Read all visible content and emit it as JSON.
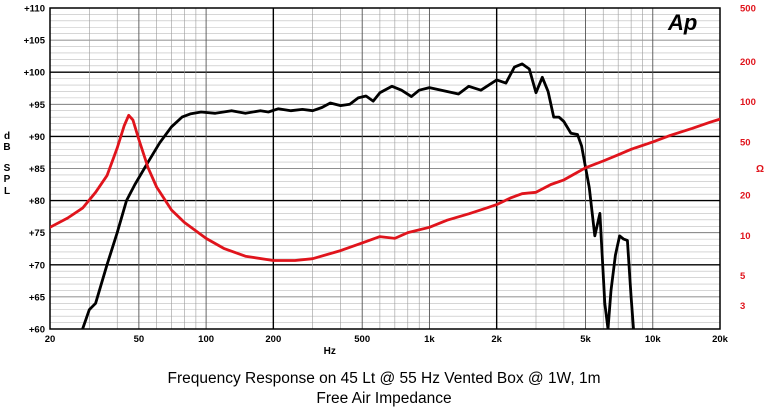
{
  "chart_data": {
    "type": "line",
    "title": "Frequency Response on 45 Lt @ 55 Hz Vented Box @ 1W, 1m",
    "subtitle": "Free Air Impedance",
    "xlabel": "Hz",
    "ylabel": "dB SPL",
    "ylabel_letters": [
      "d",
      "B",
      "S",
      "P",
      "L"
    ],
    "y2label": "Ω",
    "logo": "Ap",
    "x_scale": "log",
    "xlim": [
      20,
      20000
    ],
    "ylim": [
      60,
      110
    ],
    "y2lim": [
      2,
      500
    ],
    "y2_scale": "log",
    "x_ticks": [
      {
        "value": 20,
        "label": "20"
      },
      {
        "value": 50,
        "label": "50"
      },
      {
        "value": 100,
        "label": "100"
      },
      {
        "value": 200,
        "label": "200"
      },
      {
        "value": 500,
        "label": "500"
      },
      {
        "value": 1000,
        "label": "1k"
      },
      {
        "value": 2000,
        "label": "2k"
      },
      {
        "value": 5000,
        "label": "5k"
      },
      {
        "value": 10000,
        "label": "10k"
      },
      {
        "value": 20000,
        "label": "20k"
      }
    ],
    "y_ticks": [
      {
        "value": 60,
        "label": "+60"
      },
      {
        "value": 65,
        "label": "+65"
      },
      {
        "value": 70,
        "label": "+70"
      },
      {
        "value": 75,
        "label": "+75"
      },
      {
        "value": 80,
        "label": "+80"
      },
      {
        "value": 85,
        "label": "+85"
      },
      {
        "value": 90,
        "label": "+90"
      },
      {
        "value": 95,
        "label": "+95"
      },
      {
        "value": 100,
        "label": "+100"
      },
      {
        "value": 105,
        "label": "+105"
      },
      {
        "value": 110,
        "label": "+110"
      }
    ],
    "y2_ticks": [
      {
        "value": 3,
        "label": "3"
      },
      {
        "value": 5,
        "label": "5"
      },
      {
        "value": 10,
        "label": "10"
      },
      {
        "value": 20,
        "label": "20"
      },
      {
        "value": 50,
        "label": "50"
      },
      {
        "value": 100,
        "label": "100"
      },
      {
        "value": 200,
        "label": "200"
      },
      {
        "value": 500,
        "label": "500"
      }
    ],
    "grid_major_y": [
      70,
      80,
      90,
      100
    ],
    "series": [
      {
        "name": "Frequency Response (dB SPL)",
        "axis": "left",
        "color": "#000000",
        "points": [
          [
            28,
            60
          ],
          [
            30,
            63
          ],
          [
            32,
            64
          ],
          [
            36,
            70
          ],
          [
            40,
            75
          ],
          [
            44,
            80
          ],
          [
            48,
            82.5
          ],
          [
            55,
            86
          ],
          [
            62,
            89
          ],
          [
            70,
            91.5
          ],
          [
            78,
            93
          ],
          [
            85,
            93.5
          ],
          [
            95,
            93.8
          ],
          [
            110,
            93.6
          ],
          [
            130,
            94
          ],
          [
            150,
            93.6
          ],
          [
            175,
            94
          ],
          [
            190,
            93.8
          ],
          [
            210,
            94.3
          ],
          [
            240,
            94
          ],
          [
            270,
            94.2
          ],
          [
            300,
            94
          ],
          [
            330,
            94.5
          ],
          [
            360,
            95.2
          ],
          [
            400,
            94.8
          ],
          [
            440,
            95
          ],
          [
            480,
            96
          ],
          [
            520,
            96.3
          ],
          [
            560,
            95.5
          ],
          [
            600,
            96.8
          ],
          [
            680,
            97.8
          ],
          [
            750,
            97.2
          ],
          [
            830,
            96.2
          ],
          [
            900,
            97.2
          ],
          [
            1000,
            97.6
          ],
          [
            1200,
            97
          ],
          [
            1350,
            96.6
          ],
          [
            1500,
            97.8
          ],
          [
            1700,
            97.2
          ],
          [
            2000,
            98.8
          ],
          [
            2200,
            98.3
          ],
          [
            2400,
            100.8
          ],
          [
            2600,
            101.3
          ],
          [
            2800,
            100.5
          ],
          [
            3000,
            96.8
          ],
          [
            3200,
            99.2
          ],
          [
            3400,
            97
          ],
          [
            3600,
            93
          ],
          [
            3800,
            93
          ],
          [
            4000,
            92.3
          ],
          [
            4300,
            90.5
          ],
          [
            4600,
            90.3
          ],
          [
            4800,
            88.5
          ],
          [
            5200,
            82
          ],
          [
            5500,
            74.5
          ],
          [
            5800,
            78
          ],
          [
            6100,
            64
          ],
          [
            6300,
            60
          ],
          [
            6500,
            66
          ],
          [
            6800,
            71.5
          ],
          [
            7100,
            74.5
          ],
          [
            7400,
            74
          ],
          [
            7700,
            73.8
          ],
          [
            8000,
            65
          ],
          [
            8200,
            60
          ]
        ]
      },
      {
        "name": "Free Air Impedance (Ω)",
        "axis": "right",
        "color": "#e0141c",
        "points": [
          [
            20,
            11.5
          ],
          [
            24,
            13.5
          ],
          [
            28,
            16
          ],
          [
            32,
            21
          ],
          [
            36,
            28
          ],
          [
            40,
            45
          ],
          [
            43,
            66
          ],
          [
            45,
            79
          ],
          [
            47,
            73
          ],
          [
            50,
            52
          ],
          [
            55,
            32
          ],
          [
            60,
            23
          ],
          [
            70,
            15.5
          ],
          [
            80,
            12.5
          ],
          [
            100,
            9.5
          ],
          [
            120,
            8
          ],
          [
            150,
            7
          ],
          [
            200,
            6.5
          ],
          [
            250,
            6.5
          ],
          [
            300,
            6.7
          ],
          [
            400,
            7.7
          ],
          [
            500,
            8.8
          ],
          [
            600,
            9.8
          ],
          [
            700,
            9.5
          ],
          [
            800,
            10.5
          ],
          [
            1000,
            11.5
          ],
          [
            1200,
            13
          ],
          [
            1500,
            14.5
          ],
          [
            1800,
            16
          ],
          [
            2000,
            17
          ],
          [
            2300,
            19
          ],
          [
            2600,
            20.5
          ],
          [
            3000,
            21
          ],
          [
            3500,
            24
          ],
          [
            4000,
            26
          ],
          [
            4500,
            29
          ],
          [
            5000,
            32
          ],
          [
            6000,
            36
          ],
          [
            7000,
            40
          ],
          [
            8000,
            44
          ],
          [
            10000,
            50
          ],
          [
            12000,
            56
          ],
          [
            15000,
            63
          ],
          [
            18000,
            70
          ],
          [
            20000,
            74
          ]
        ]
      }
    ]
  }
}
